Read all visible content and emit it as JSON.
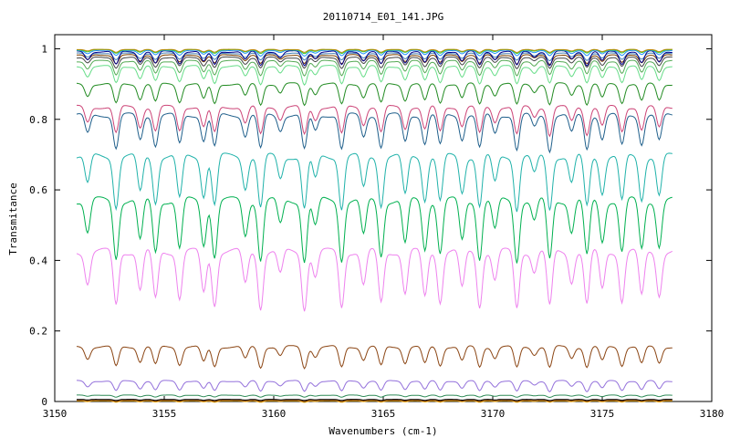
{
  "chart_data": {
    "type": "line",
    "title": "20110714_E01_141.JPG",
    "xlabel": "Wavenumbers (cm-1)",
    "ylabel": "Transmitance",
    "xlim": [
      3150,
      3180
    ],
    "ylim": [
      0,
      1.04
    ],
    "x_ticks": [
      3150,
      3155,
      3160,
      3165,
      3170,
      3175,
      3180
    ],
    "y_ticks": [
      0,
      0.2,
      0.4,
      0.6,
      0.8,
      1
    ],
    "x_tick_labels": [
      "3150",
      "3155",
      "3160",
      "3165",
      "3170",
      "3175",
      "3180"
    ],
    "y_tick_labels": [
      "0",
      "0.2",
      "0.4",
      "0.6",
      "0.8",
      "1"
    ],
    "x_start": 3151,
    "x_end": 3178.2,
    "absorption_lines": [
      3151.5,
      3152.8,
      3153.9,
      3154.6,
      3155.7,
      3156.8,
      3157.3,
      3158.7,
      3159.4,
      3160.3,
      3161.4,
      3161.9,
      3163.1,
      3164.1,
      3164.9,
      3166.0,
      3166.9,
      3167.6,
      3168.6,
      3169.4,
      3170.1,
      3171.1,
      3171.9,
      3172.6,
      3173.6,
      3174.3,
      3175.0,
      3175.9,
      3176.8,
      3177.6
    ],
    "series": [
      {
        "color": "#e8a200",
        "baseline": 0.002,
        "depth": 0.004
      },
      {
        "color": "#8b4513",
        "baseline": 0.004,
        "depth": 0.003
      },
      {
        "color": "#000000",
        "baseline": 0.006,
        "depth": 0.003
      },
      {
        "color": "#2e8b57",
        "baseline": 0.018,
        "depth": 0.006
      },
      {
        "color": "#9370db",
        "baseline": 0.058,
        "depth": 0.03
      },
      {
        "color": "#8b4513",
        "baseline": 0.155,
        "depth": 0.06
      },
      {
        "color": "#ee82ee",
        "baseline": 0.425,
        "depth": 0.16
      },
      {
        "color": "#00b050",
        "baseline": 0.57,
        "depth": 0.17
      },
      {
        "color": "#20b2aa",
        "baseline": 0.695,
        "depth": 0.15
      },
      {
        "color": "#1f5f8b",
        "baseline": 0.812,
        "depth": 0.1
      },
      {
        "color": "#cc4477",
        "baseline": 0.835,
        "depth": 0.08
      },
      {
        "color": "#228b22",
        "baseline": 0.9,
        "depth": 0.06
      },
      {
        "color": "#66dd88",
        "baseline": 0.95,
        "depth": 0.05
      },
      {
        "color": "#55aa55",
        "baseline": 0.965,
        "depth": 0.04
      },
      {
        "color": "#444444",
        "baseline": 0.975,
        "depth": 0.03
      },
      {
        "color": "#7b3f00",
        "baseline": 0.982,
        "depth": 0.025
      },
      {
        "color": "#4682b4",
        "baseline": 0.987,
        "depth": 0.02
      },
      {
        "color": "#00008b",
        "baseline": 0.992,
        "depth": 0.04
      },
      {
        "color": "#1e90ff",
        "baseline": 0.995,
        "depth": 0.015
      },
      {
        "color": "#32cd32",
        "baseline": 0.997,
        "depth": 0.01
      },
      {
        "color": "#b8860b",
        "baseline": 0.998,
        "depth": 0.008
      }
    ],
    "grid": false,
    "legend": "none"
  }
}
